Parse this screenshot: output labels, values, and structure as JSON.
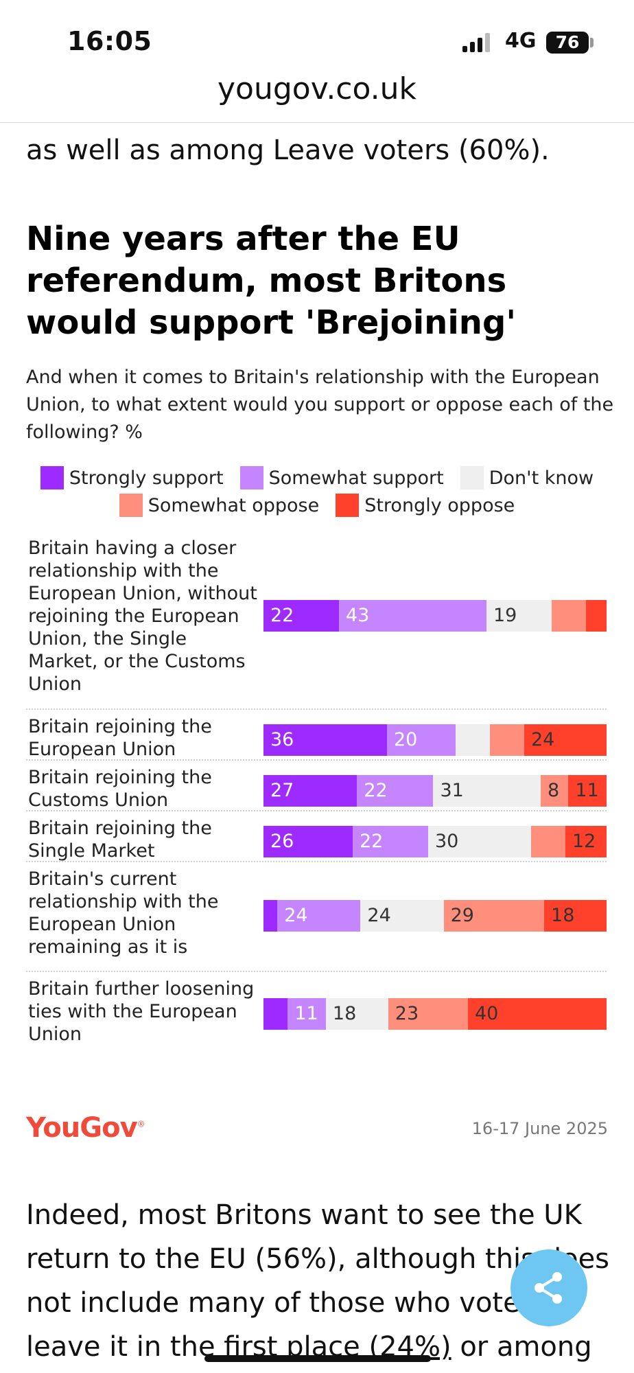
{
  "status_bar": {
    "time": "16:05",
    "network": "4G",
    "battery": "76"
  },
  "browser": {
    "url": "yougov.co.uk"
  },
  "article": {
    "previous_line": "as well as among Leave voters (60%).",
    "headline": "Nine years after the EU referendum, most Britons would support 'Brejoining'",
    "question": "And when it comes to Britain's relationship with the European Union, to what extent would you support or oppose each of the following? %",
    "body_text_part1": "Indeed, most Britons want to see the UK return to the EU (56%), although this does not include many of those who voted to leave it in the ",
    "body_text_link": "first place (24%)",
    "body_text_part2": " or among"
  },
  "legend": [
    {
      "label": "Strongly support",
      "color": "#9d2bff"
    },
    {
      "label": "Somewhat support",
      "color": "#c585ff"
    },
    {
      "label": "Don't know",
      "color": "#efefef"
    },
    {
      "label": "Somewhat oppose",
      "color": "#ff8e7c"
    },
    {
      "label": "Strongly oppose",
      "color": "#ff412c"
    }
  ],
  "chart_data": {
    "type": "bar",
    "orientation": "horizontal",
    "stacked": true,
    "categories": [
      "Britain having a closer relationship with the European Union, without rejoining the European Union, the Single Market, or the Customs Union",
      "Britain rejoining the European Union",
      "Britain rejoining the Customs Union",
      "Britain rejoining the Single Market",
      "Britain's current relationship with the European Union remaining as it is",
      "Britain further loosening ties with the European Union"
    ],
    "series": [
      {
        "name": "Strongly support",
        "values": [
          22,
          36,
          27,
          26,
          4,
          7
        ],
        "labels": [
          "22",
          "36",
          "27",
          "26",
          "",
          ""
        ]
      },
      {
        "name": "Somewhat support",
        "values": [
          43,
          20,
          22,
          22,
          24,
          11
        ],
        "labels": [
          "43",
          "20",
          "22",
          "22",
          "24",
          "11"
        ]
      },
      {
        "name": "Don't know",
        "values": [
          19,
          10,
          31,
          30,
          24,
          18
        ],
        "labels": [
          "19",
          "",
          "31",
          "30",
          "24",
          "18"
        ]
      },
      {
        "name": "Somewhat oppose",
        "values": [
          10,
          10,
          8,
          10,
          29,
          23
        ],
        "labels": [
          "",
          "",
          "8",
          "",
          "29",
          "23"
        ]
      },
      {
        "name": "Strongly oppose",
        "values": [
          6,
          24,
          11,
          12,
          18,
          40
        ],
        "labels": [
          "",
          "24",
          "11",
          "12",
          "18",
          "40"
        ]
      }
    ],
    "unit": "%"
  },
  "footer": {
    "brand": "YouGov",
    "date": "16-17 June 2025"
  },
  "icons": {
    "share": "share-icon"
  }
}
